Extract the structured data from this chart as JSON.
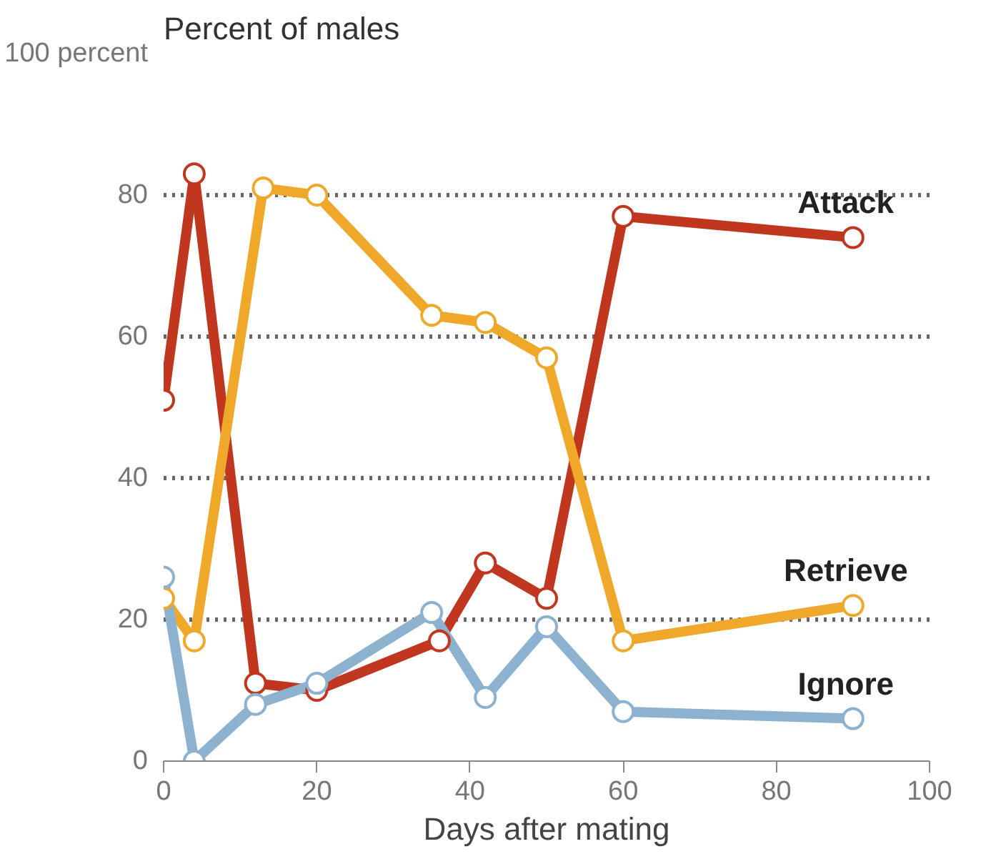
{
  "chart_data": {
    "type": "line",
    "title": "Percent of males",
    "xlabel": "Days after mating",
    "xlim": [
      0,
      100
    ],
    "xticks": [
      0,
      20,
      40,
      60,
      80,
      100
    ],
    "ylim": [
      0,
      100
    ],
    "yticks": [
      0,
      20,
      40,
      60,
      80,
      {
        "value": 100,
        "label": "100 percent"
      }
    ],
    "grid": "y",
    "legend": false,
    "marker": "circle",
    "line_style": "solid",
    "series": [
      {
        "name": "Attack",
        "color": "#c0361f",
        "x": [
          0,
          4,
          12,
          20,
          36,
          42,
          50,
          60,
          90
        ],
        "values": [
          51,
          83,
          11,
          10,
          17,
          28,
          23,
          77,
          74
        ]
      },
      {
        "name": "Retrieve",
        "color": "#f0a82a",
        "x": [
          0,
          4,
          13,
          20,
          35,
          42,
          50,
          60,
          90
        ],
        "values": [
          23,
          17,
          81,
          80,
          63,
          62,
          57,
          17,
          22
        ]
      },
      {
        "name": "Ignore",
        "color": "#8db2cf",
        "x": [
          0,
          4,
          12,
          20,
          35,
          42,
          50,
          60,
          90
        ],
        "values": [
          26,
          0,
          8,
          11,
          21,
          9,
          19,
          7,
          6
        ]
      }
    ]
  }
}
